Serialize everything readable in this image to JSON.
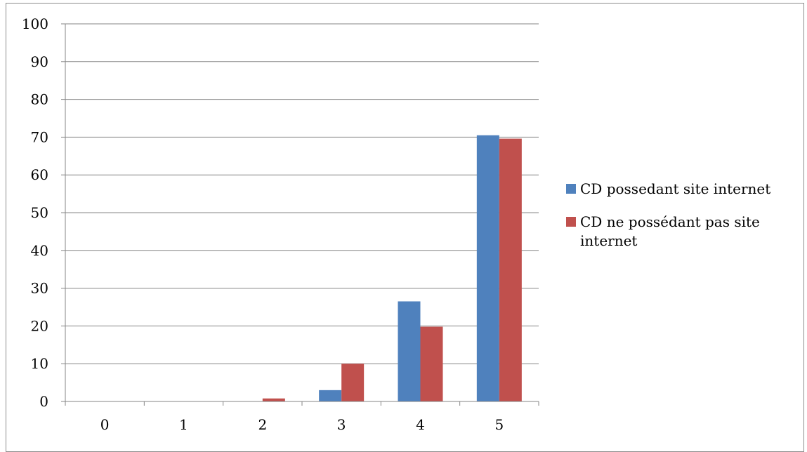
{
  "chart_data": {
    "type": "bar",
    "categories": [
      "0",
      "1",
      "2",
      "3",
      "4",
      "5"
    ],
    "series": [
      {
        "name": "CD possedant site internet",
        "values": [
          0,
          0,
          0,
          3,
          26.5,
          70.5
        ],
        "color": "#4f81bd"
      },
      {
        "name": "CD ne possédant pas site internet",
        "values": [
          0,
          0,
          0.8,
          10,
          19.8,
          69.6
        ],
        "color": "#c0504d"
      }
    ],
    "yticks": [
      "0",
      "10",
      "20",
      "30",
      "40",
      "50",
      "60",
      "70",
      "80",
      "90",
      "100"
    ],
    "ylim": [
      0,
      100
    ],
    "grid": true,
    "legend_position": "right",
    "title": "",
    "xlabel": "",
    "ylabel": ""
  }
}
